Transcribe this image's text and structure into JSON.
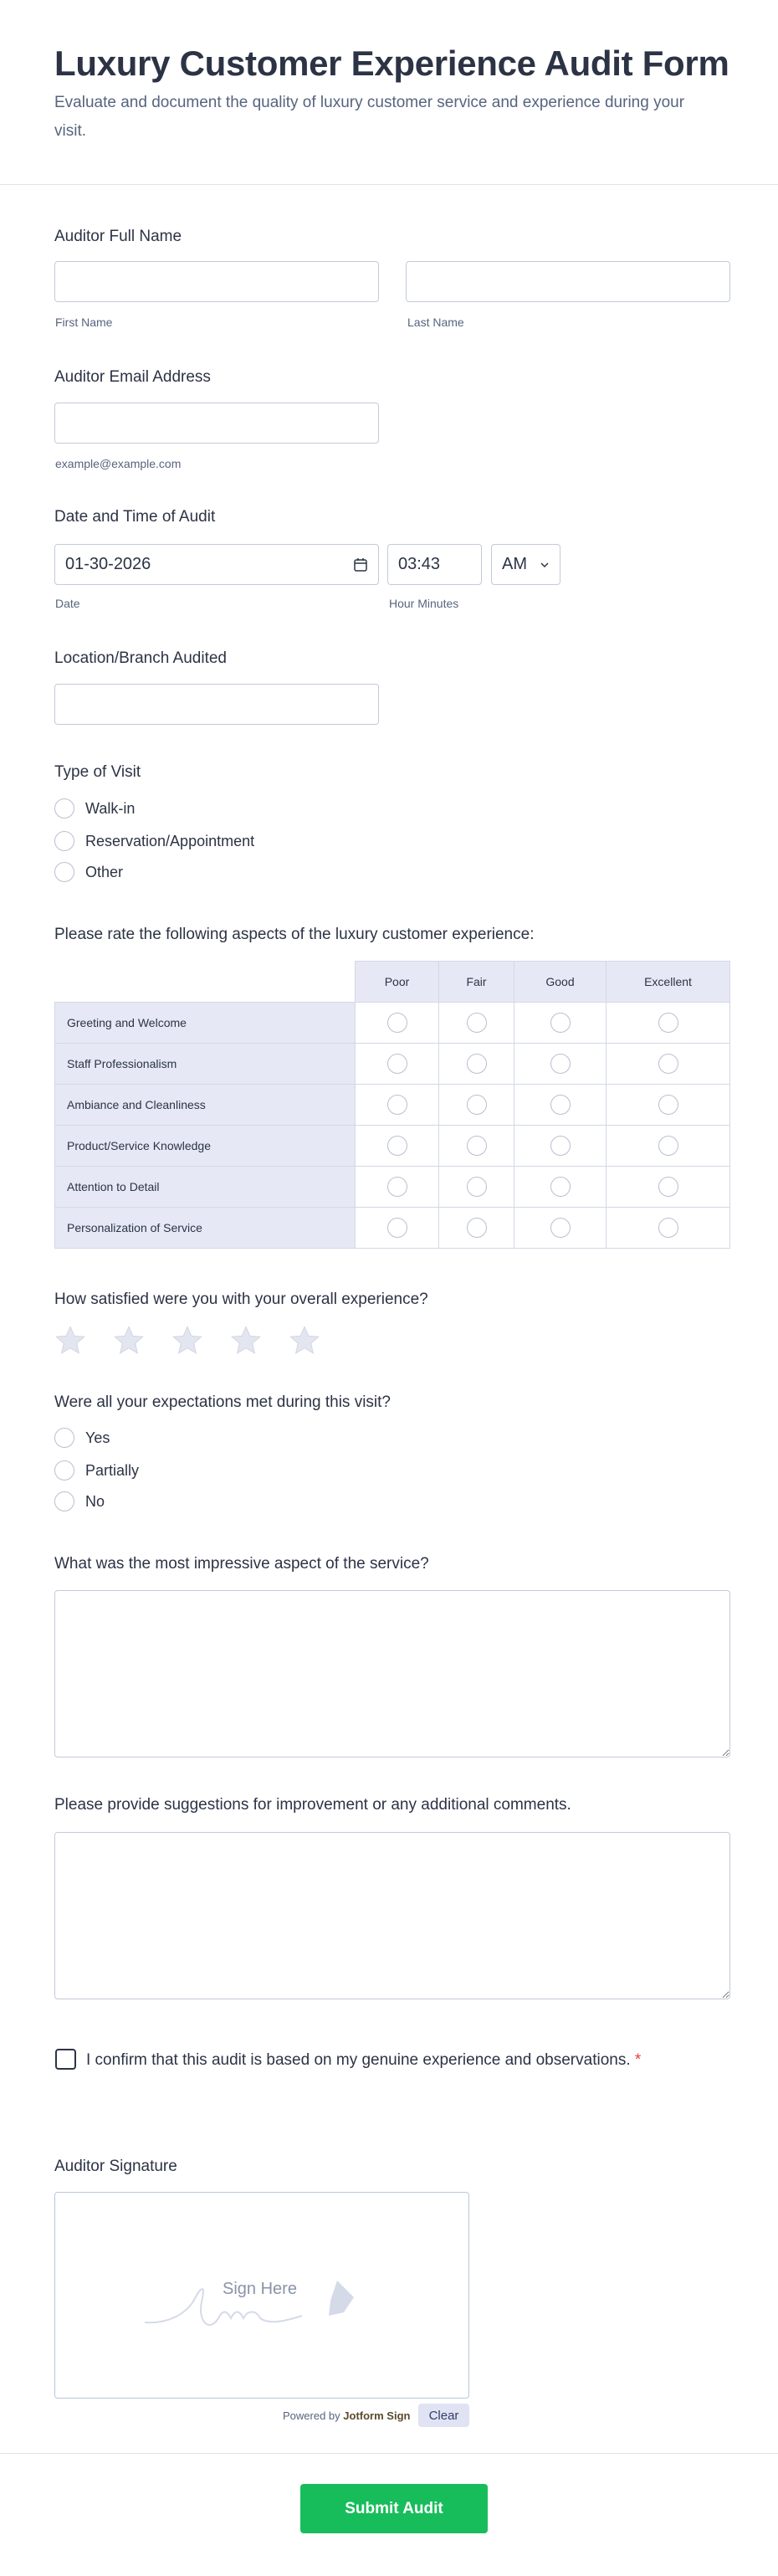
{
  "header": {
    "title": "Luxury Customer Experience Audit Form",
    "subtitle": "Evaluate and document the quality of luxury customer service and experience during your visit."
  },
  "name": {
    "label": "Auditor Full Name",
    "first": "First Name",
    "last": "Last Name"
  },
  "email": {
    "label": "Auditor Email Address",
    "sublabel": "example@example.com"
  },
  "datetime": {
    "label": "Date and Time of Audit",
    "date": "01-30-2026",
    "time": "03:43",
    "ampm": "AM",
    "date_sub": "Date",
    "time_sub": "Hour Minutes"
  },
  "location": {
    "label": "Location/Branch Audited"
  },
  "visit": {
    "label": "Type of Visit",
    "options": [
      "Walk-in",
      "Reservation/Appointment",
      "Other"
    ]
  },
  "matrix": {
    "label": "Please rate the following aspects of the luxury customer experience:",
    "columns": [
      "Poor",
      "Fair",
      "Good",
      "Excellent"
    ],
    "rows": [
      "Greeting and Welcome",
      "Staff Professionalism",
      "Ambiance and Cleanliness",
      "Product/Service Knowledge",
      "Attention to Detail",
      "Personalization of Service"
    ]
  },
  "satisfaction": {
    "label": "How satisfied were you with your overall experience?",
    "stars": 5,
    "value": 0,
    "star_color": "#e3e6f0"
  },
  "expectations": {
    "label": "Were all your expectations met during this visit?",
    "options": [
      "Yes",
      "Partially",
      "No"
    ]
  },
  "impressive": {
    "label": "What was the most impressive aspect of the service?"
  },
  "suggestions": {
    "label": "Please provide suggestions for improvement or any additional comments."
  },
  "confirm": {
    "label": "I confirm that this audit is based on my genuine experience and observations.",
    "required": "*"
  },
  "signature": {
    "label": "Auditor Signature",
    "placeholder": "Sign Here",
    "powered": "Powered by",
    "brand": "Jotform Sign",
    "clear": "Clear"
  },
  "submit": {
    "label": "Submit Audit",
    "color": "#18bd5b"
  }
}
